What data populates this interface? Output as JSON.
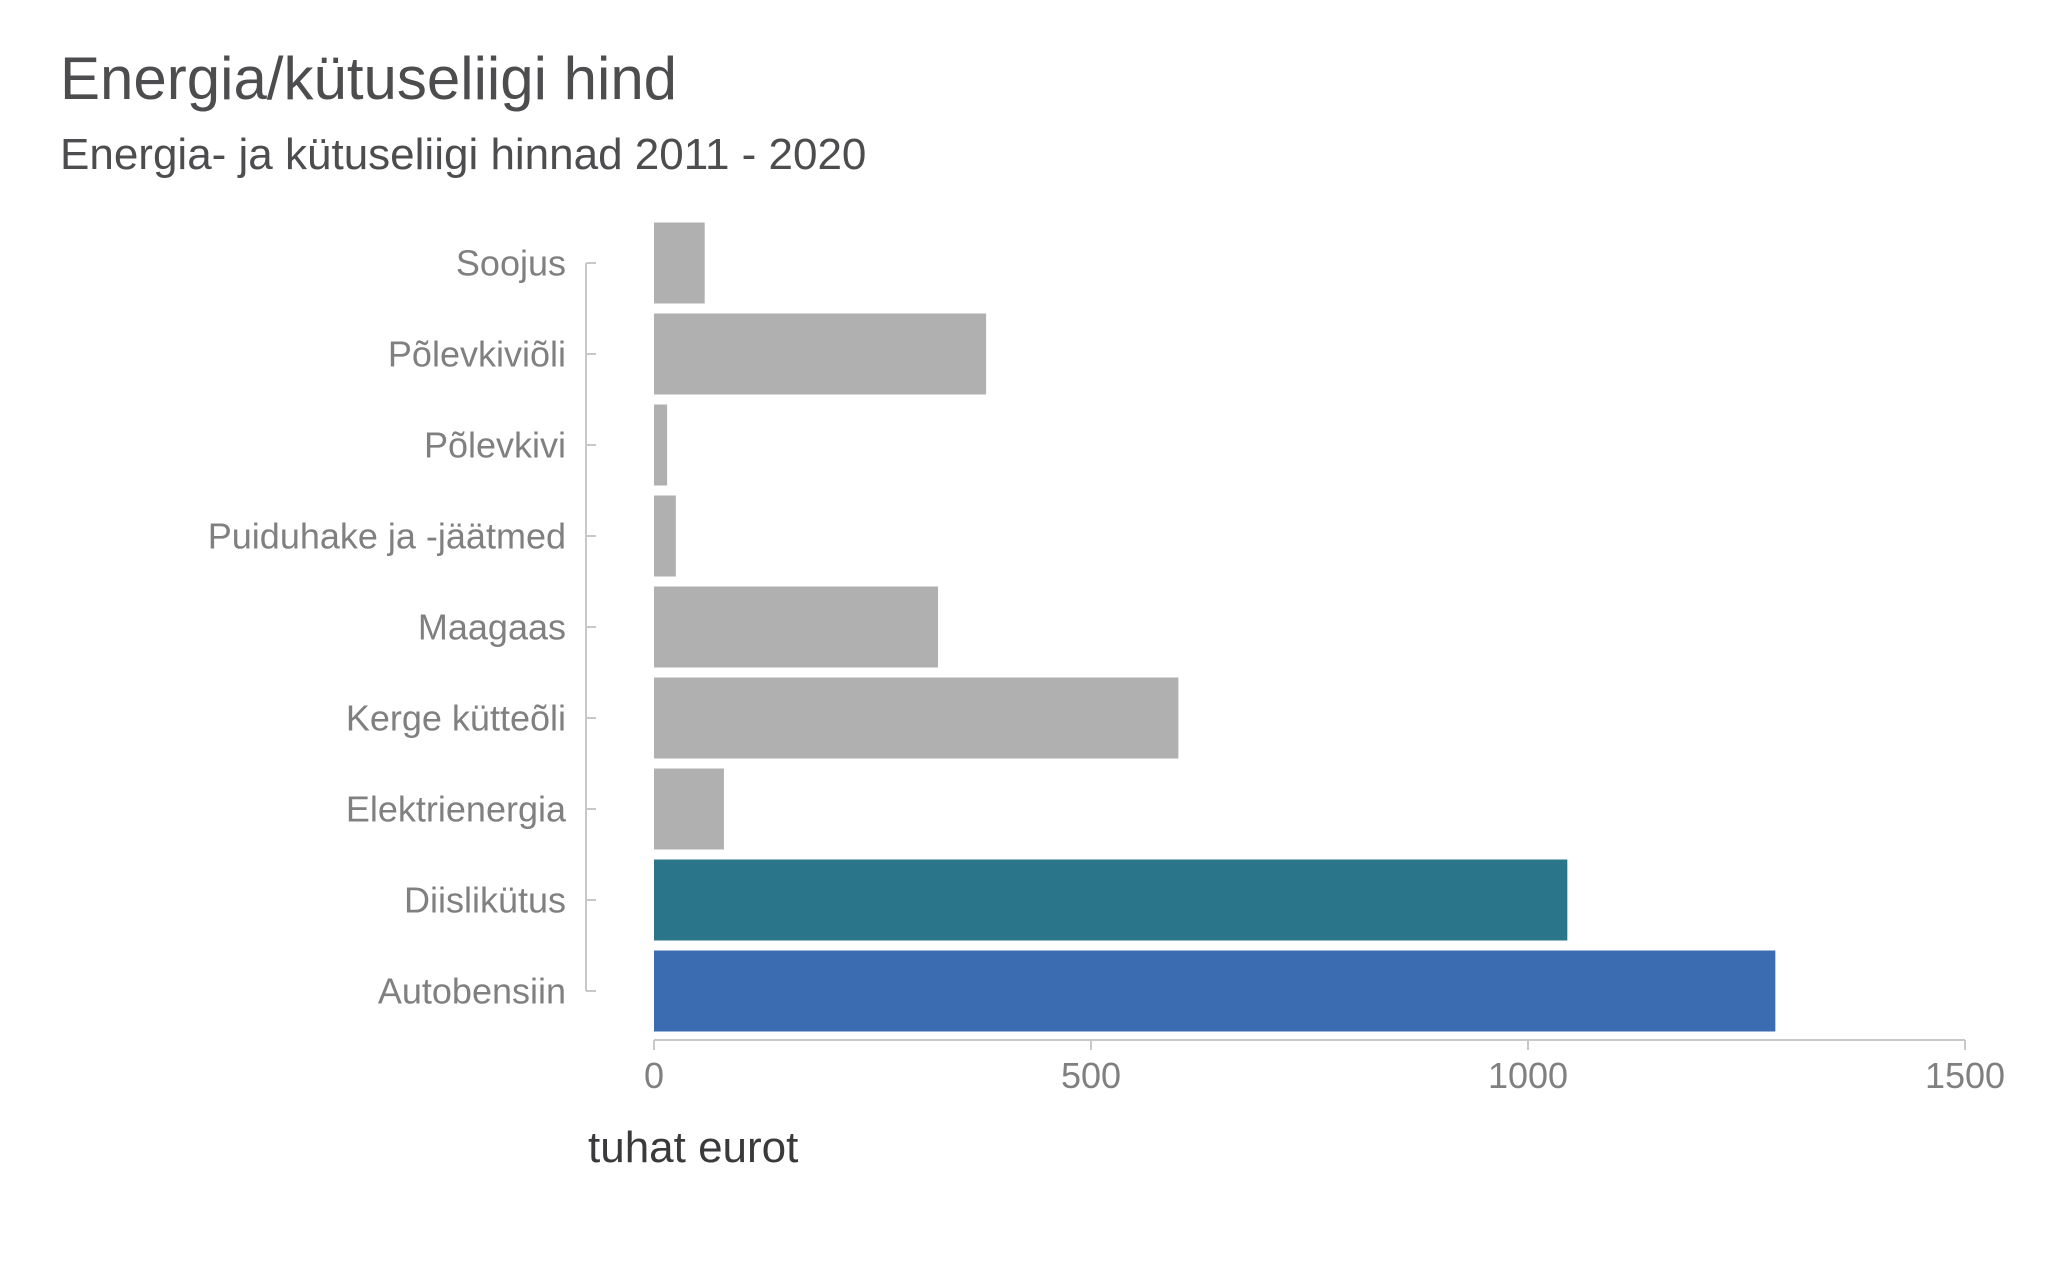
{
  "chart_data": {
    "type": "bar",
    "orientation": "horizontal",
    "title": "Energia/kütuseliigi hind",
    "subtitle": "Energia- ja kütuseliigi hinnad 2011 - 2020",
    "xlabel": "tuhat eurot",
    "ylabel": "",
    "categories": [
      "Soojus",
      "Põlevkiviõli",
      "Põlevkivi",
      "Puiduhake ja -jäätmed",
      "Maagaas",
      "Kerge kütteõli",
      "Elektrienergia",
      "Diislikütus",
      "Autobensiin"
    ],
    "values": [
      58,
      380,
      15,
      25,
      325,
      600,
      80,
      1045,
      1283
    ],
    "colors": [
      "#b0b0b0",
      "#b0b0b0",
      "#b0b0b0",
      "#b0b0b0",
      "#b0b0b0",
      "#b0b0b0",
      "#b0b0b0",
      "#2a7589",
      "#3b6bb0"
    ],
    "xlim": [
      0,
      1500
    ],
    "xticks": [
      "0",
      "500",
      "1000",
      "1500"
    ],
    "grid": false,
    "legend": "none"
  }
}
